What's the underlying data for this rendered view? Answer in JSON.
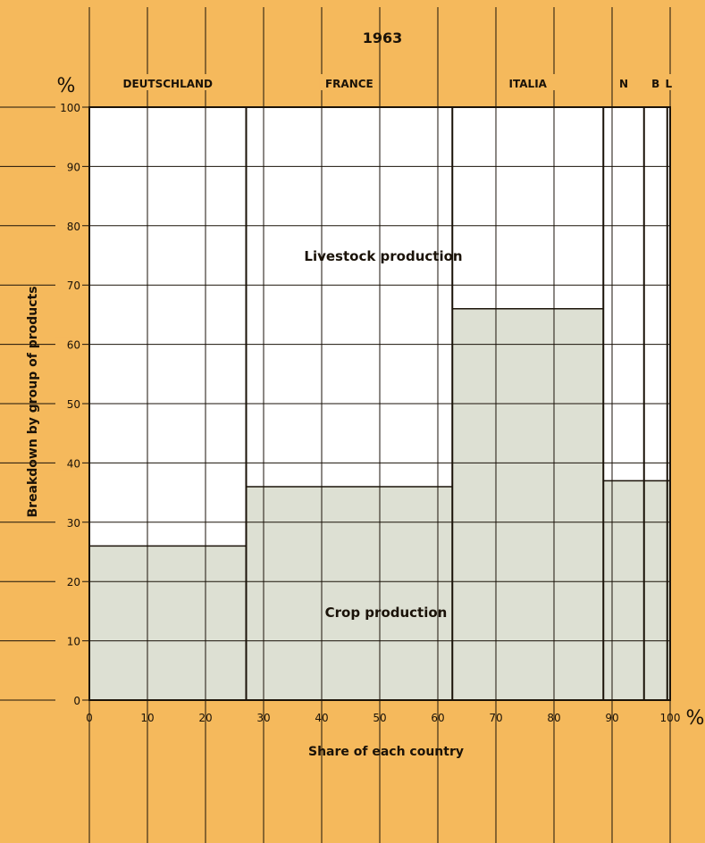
{
  "chart_data": {
    "type": "bar",
    "variant": "mekko",
    "title": "1963",
    "xlabel": "Share of each country",
    "ylabel": "Breakdown by group of products",
    "x_unit": "%",
    "y_unit": "%",
    "xlim": [
      0,
      100
    ],
    "ylim": [
      0,
      100
    ],
    "xticks": [
      0,
      10,
      20,
      30,
      40,
      50,
      60,
      70,
      80,
      90,
      100
    ],
    "yticks": [
      0,
      10,
      20,
      30,
      40,
      50,
      60,
      70,
      80,
      90,
      100
    ],
    "grid": true,
    "categories": [
      "DEUTSCHLAND",
      "FRANCE",
      "ITALIA",
      "N",
      "B",
      "L"
    ],
    "x_start": [
      0,
      27,
      62.5,
      88.5,
      95.5,
      99.5
    ],
    "x_end": [
      27,
      62.5,
      88.5,
      95.5,
      99.5,
      100
    ],
    "series": [
      {
        "name": "Crop production",
        "values": [
          26,
          36,
          66,
          37,
          37,
          37
        ]
      },
      {
        "name": "Livestock production",
        "values": [
          74,
          64,
          34,
          63,
          63,
          63
        ]
      }
    ],
    "colors": {
      "background": "#f5b95c",
      "crop": "#dde0d3",
      "livestock": "#ffffff",
      "lines": "#1a1208"
    }
  }
}
